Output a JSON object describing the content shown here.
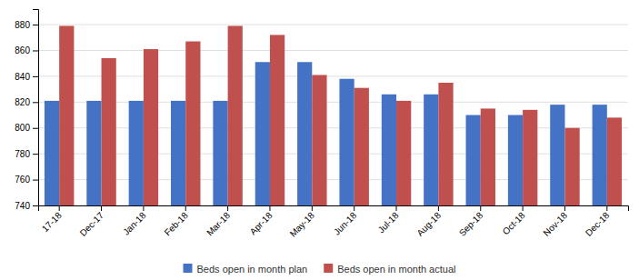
{
  "chart_data": {
    "type": "bar",
    "categories": [
      "17-18",
      "Dec-17",
      "Jan-18",
      "Feb-18",
      "Mar-18",
      "Apr-18",
      "May-18",
      "Jun-18",
      "Jul-18",
      "Aug-18",
      "Sep-18",
      "Oct-18",
      "Nov-18",
      "Dec-18"
    ],
    "series": [
      {
        "name": "Beds open in month plan",
        "color": "#4472c4",
        "values": [
          821,
          821,
          821,
          821,
          821,
          851,
          851,
          838,
          826,
          826,
          810,
          810,
          818,
          818
        ]
      },
      {
        "name": "Beds open in month actual",
        "color": "#c0504d",
        "values": [
          879,
          854,
          861,
          867,
          879,
          872,
          841,
          831,
          821,
          835,
          815,
          814,
          800,
          808
        ]
      }
    ],
    "ylim": [
      740,
      892
    ],
    "yticks": [
      740,
      760,
      780,
      800,
      820,
      840,
      860,
      880
    ],
    "grid": true,
    "legend": "bottom"
  }
}
